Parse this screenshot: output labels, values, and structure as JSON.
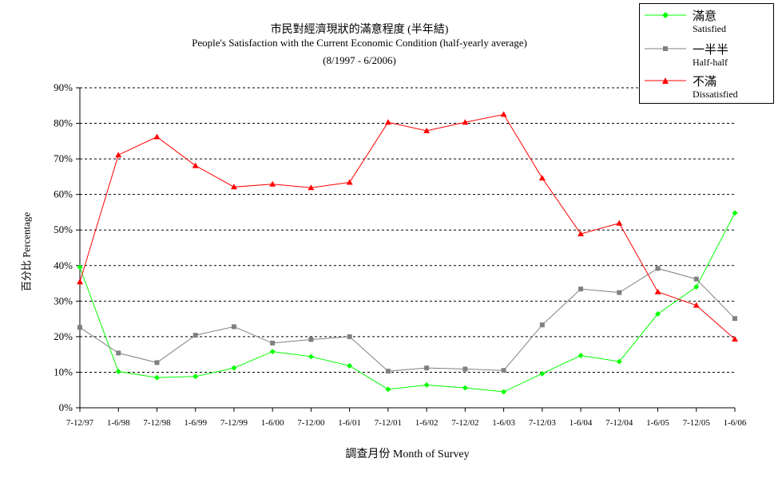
{
  "header": {
    "title_cn": "市民對經濟現狀的滿意程度 (半年結)",
    "title_en": "People's Satisfaction with the Current Economic Condition (half-yearly average)",
    "period": "(8/1997 - 6/2006)"
  },
  "legend": {
    "items": [
      {
        "cn": "滿意",
        "en": "Satisfied",
        "color": "#00ff00",
        "marker": "diamond"
      },
      {
        "cn": "一半半",
        "en": "Half-half",
        "color": "#808080",
        "marker": "square"
      },
      {
        "cn": "不滿",
        "en": "Dissatisfied",
        "color": "#ff0000",
        "marker": "triangle"
      }
    ]
  },
  "axes": {
    "ylabel": "百分比 Percentage",
    "xlabel": "調查月份 Month of Survey"
  },
  "chart_data": {
    "type": "line",
    "categories": [
      "7-12/97",
      "1-6/98",
      "7-12/98",
      "1-6/99",
      "7-12/99",
      "1-6/00",
      "7-12/00",
      "1-6/01",
      "7-12/01",
      "1-6/02",
      "7-12/02",
      "1-6/03",
      "7-12/03",
      "1-6/04",
      "7-12/04",
      "1-6/05",
      "7-12/05",
      "1-6/06"
    ],
    "ylim": [
      0,
      90
    ],
    "yticks": [
      "0%",
      "10%",
      "20%",
      "30%",
      "40%",
      "50%",
      "60%",
      "70%",
      "80%",
      "90%"
    ],
    "grid": "horizontal-dashed",
    "legend_position": "top-right",
    "series": [
      {
        "name": "滿意 Satisfied",
        "color": "#00ff00",
        "marker": "diamond",
        "values": [
          39.5,
          10.2,
          8.5,
          8.8,
          11.2,
          15.8,
          14.4,
          11.8,
          5.2,
          6.4,
          5.6,
          4.5,
          9.6,
          14.7,
          13.0,
          26.4,
          34.0,
          54.8
        ]
      },
      {
        "name": "一半半 Half-half",
        "color": "#808080",
        "marker": "square",
        "values": [
          22.6,
          15.4,
          12.7,
          20.4,
          22.8,
          18.2,
          19.2,
          20.0,
          10.3,
          11.2,
          10.9,
          10.5,
          23.3,
          33.4,
          32.4,
          39.2,
          36.2,
          25.1
        ]
      },
      {
        "name": "不滿 Dissatisfied",
        "color": "#ff0000",
        "marker": "triangle",
        "values": [
          35.4,
          71.1,
          76.2,
          68.1,
          62.1,
          62.9,
          61.9,
          63.4,
          80.3,
          77.9,
          80.3,
          82.5,
          64.6,
          48.9,
          51.9,
          32.6,
          28.8,
          19.3
        ]
      }
    ]
  }
}
